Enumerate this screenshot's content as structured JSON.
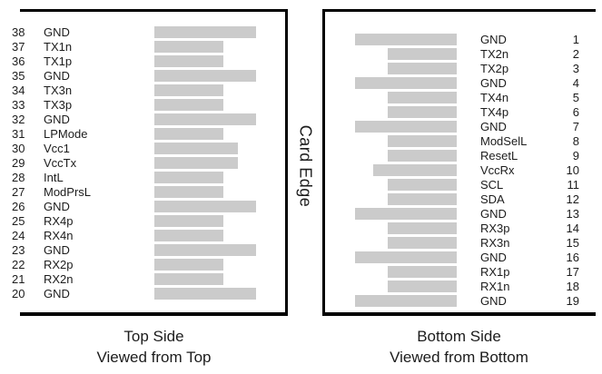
{
  "card_edge_label": "Card Edge",
  "colors": {
    "pad": "#cbcbcb",
    "outline": "#000000",
    "text": "#1c1c1c"
  },
  "left_panel": {
    "caption_line1": "Top Side",
    "caption_line2": "Viewed from Top",
    "pins": [
      {
        "num": "38",
        "name": "GND",
        "bar": 112
      },
      {
        "num": "37",
        "name": "TX1n",
        "bar": 76
      },
      {
        "num": "36",
        "name": "TX1p",
        "bar": 76
      },
      {
        "num": "35",
        "name": "GND",
        "bar": 112
      },
      {
        "num": "34",
        "name": "TX3n",
        "bar": 76
      },
      {
        "num": "33",
        "name": "TX3p",
        "bar": 76
      },
      {
        "num": "32",
        "name": "GND",
        "bar": 112
      },
      {
        "num": "31",
        "name": "LPMode",
        "bar": 76
      },
      {
        "num": "30",
        "name": "Vcc1",
        "bar": 92
      },
      {
        "num": "29",
        "name": "VccTx",
        "bar": 92
      },
      {
        "num": "28",
        "name": "IntL",
        "bar": 76
      },
      {
        "num": "27",
        "name": "ModPrsL",
        "bar": 76
      },
      {
        "num": "26",
        "name": "GND",
        "bar": 112
      },
      {
        "num": "25",
        "name": "RX4p",
        "bar": 76
      },
      {
        "num": "24",
        "name": "RX4n",
        "bar": 76
      },
      {
        "num": "23",
        "name": "GND",
        "bar": 112
      },
      {
        "num": "22",
        "name": "RX2p",
        "bar": 76
      },
      {
        "num": "21",
        "name": "RX2n",
        "bar": 76
      },
      {
        "num": "20",
        "name": "GND",
        "bar": 112
      }
    ]
  },
  "right_panel": {
    "caption_line1": "Bottom Side",
    "caption_line2": "Viewed from Bottom",
    "pins": [
      {
        "num": "1",
        "name": "GND",
        "bar": 112
      },
      {
        "num": "2",
        "name": "TX2n",
        "bar": 76
      },
      {
        "num": "3",
        "name": "TX2p",
        "bar": 76
      },
      {
        "num": "4",
        "name": "GND",
        "bar": 112
      },
      {
        "num": "5",
        "name": "TX4n",
        "bar": 76
      },
      {
        "num": "6",
        "name": "TX4p",
        "bar": 76
      },
      {
        "num": "7",
        "name": "GND",
        "bar": 112
      },
      {
        "num": "8",
        "name": "ModSelL",
        "bar": 76
      },
      {
        "num": "9",
        "name": "ResetL",
        "bar": 76
      },
      {
        "num": "10",
        "name": "VccRx",
        "bar": 92
      },
      {
        "num": "11",
        "name": "SCL",
        "bar": 76
      },
      {
        "num": "12",
        "name": "SDA",
        "bar": 76
      },
      {
        "num": "13",
        "name": "GND",
        "bar": 112
      },
      {
        "num": "14",
        "name": "RX3p",
        "bar": 76
      },
      {
        "num": "15",
        "name": "RX3n",
        "bar": 76
      },
      {
        "num": "16",
        "name": "GND",
        "bar": 112
      },
      {
        "num": "17",
        "name": "RX1p",
        "bar": 76
      },
      {
        "num": "18",
        "name": "RX1n",
        "bar": 76
      },
      {
        "num": "19",
        "name": "GND",
        "bar": 112
      }
    ]
  }
}
